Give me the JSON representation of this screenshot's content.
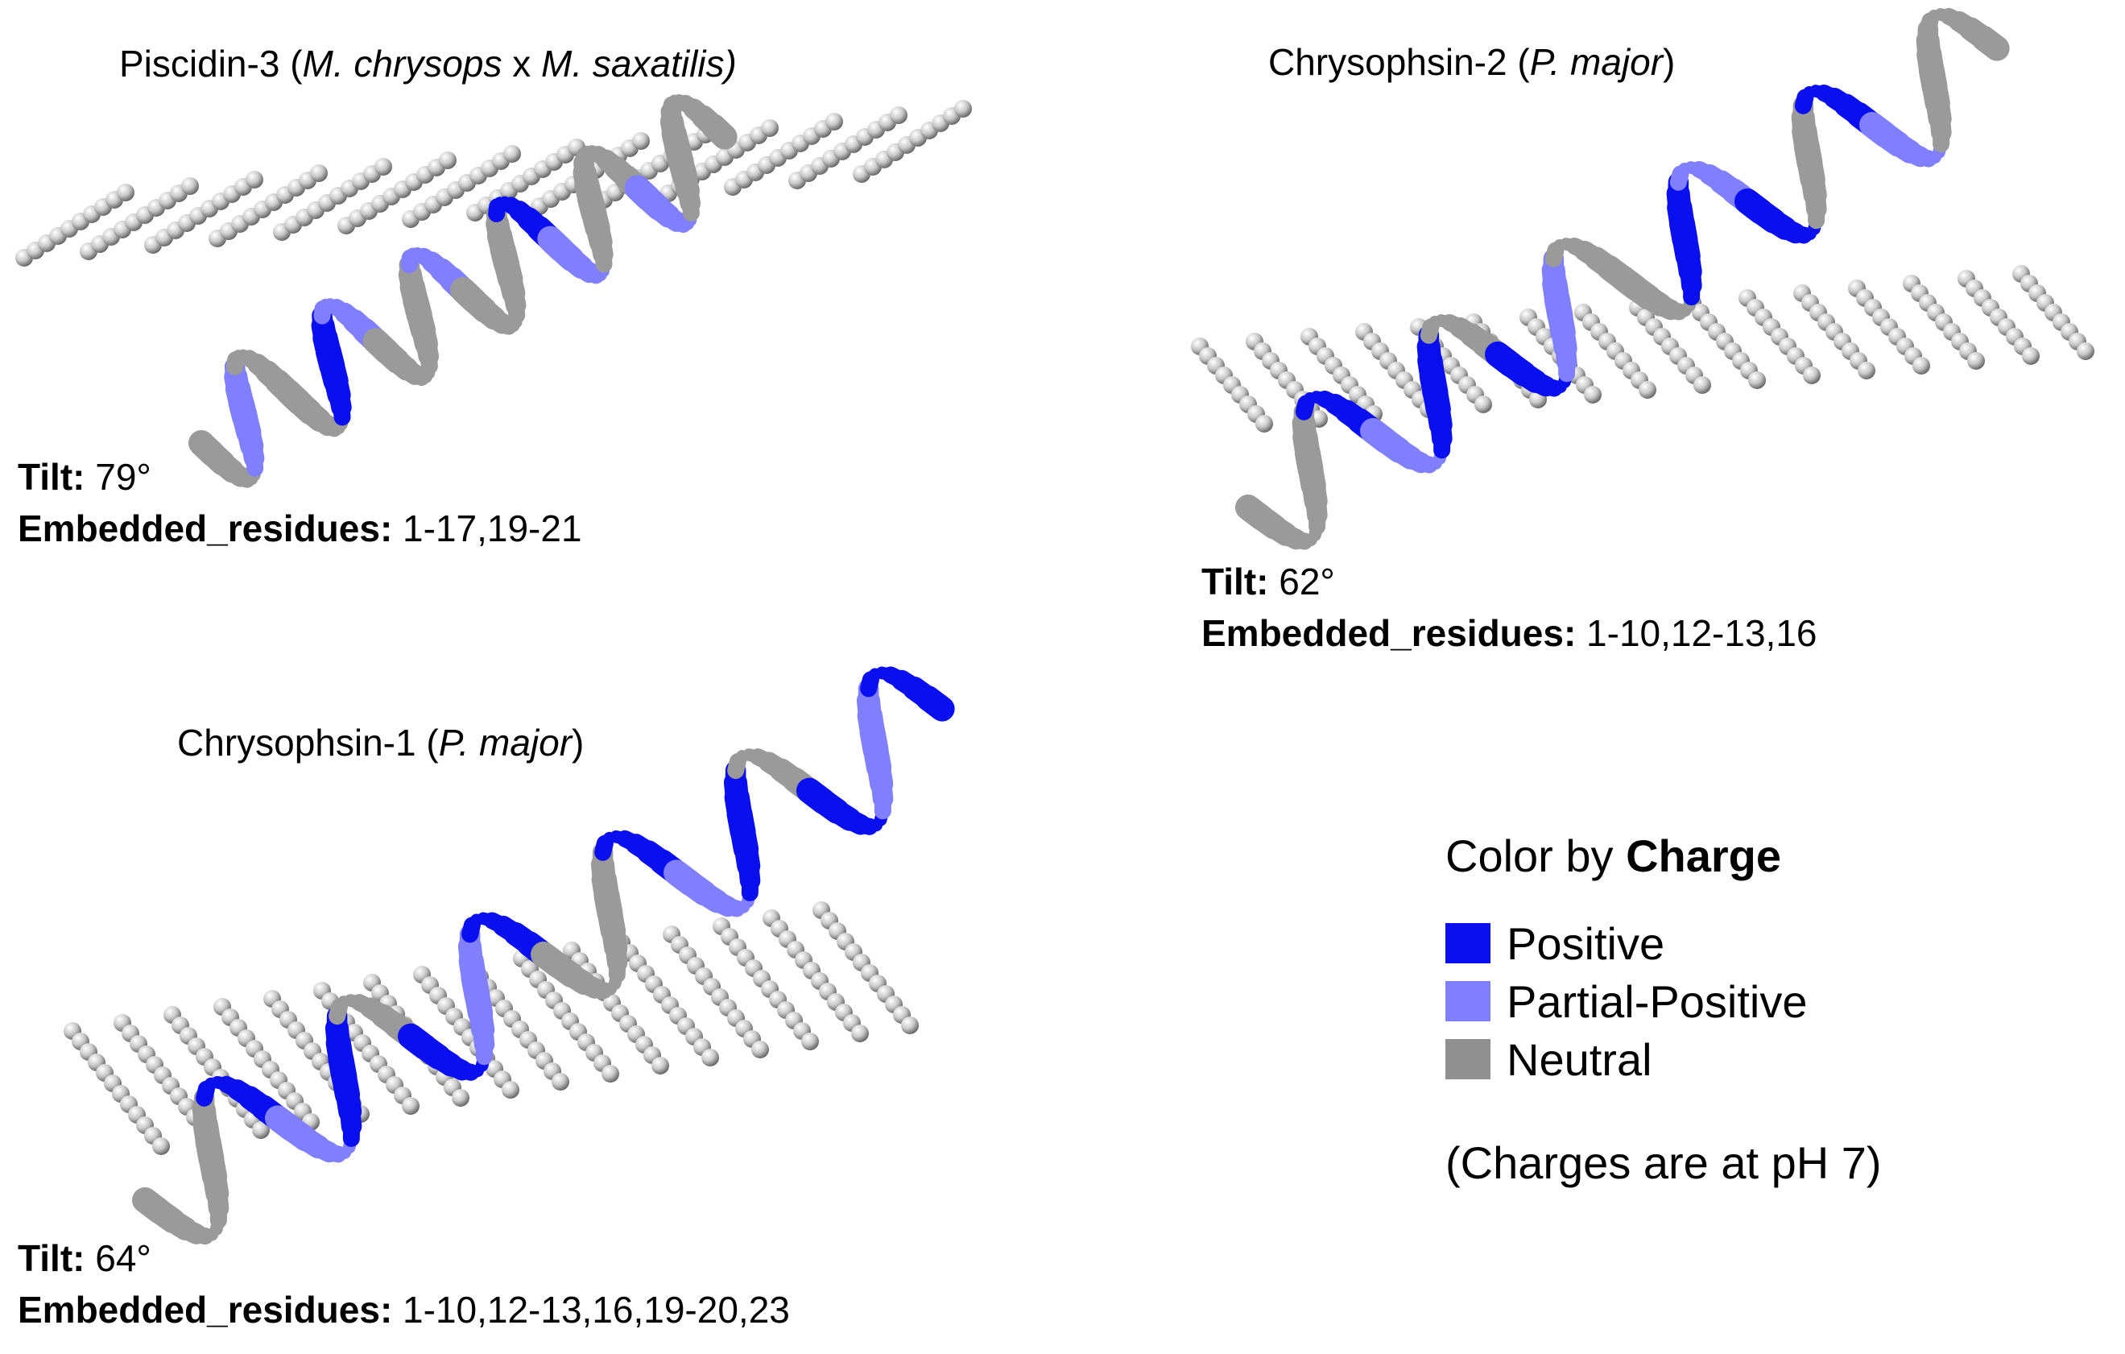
{
  "panels": [
    {
      "name_prefix": "Piscidin-3",
      "organism_paren_open": "(",
      "organism_a": "M. chrysops",
      "organism_x": " x ",
      "organism_b": "M. saxatilis)",
      "organism_paren_close": "",
      "tilt_label": "Tilt:",
      "tilt_value": " 79°",
      "embedded_label": "Embedded_residues:",
      "embedded_value": " 1-17,19-21"
    },
    {
      "name_prefix": "Chrysophsin-2",
      "organism_paren_open": "(",
      "organism": "P. major",
      "organism_paren_close": ")",
      "tilt_label": "Tilt:",
      "tilt_value": " 62°",
      "embedded_label": "Embedded_residues:",
      "embedded_value": " 1-10,12-13,16"
    },
    {
      "name_prefix": "Chrysophsin-1",
      "organism_paren_open": "(",
      "organism": "P. major",
      "organism_paren_close": ")",
      "tilt_label": "Tilt:",
      "tilt_value": " 64°",
      "embedded_label": "Embedded_residues:",
      "embedded_value": " 1-10,12-13,16,19-20,23"
    }
  ],
  "legend": {
    "title_prefix": "Color by ",
    "title_bold": "Charge",
    "items": [
      {
        "label": "Positive",
        "color": "#0a0ff0"
      },
      {
        "label": "Partial-Positive",
        "color": "#8080ff"
      },
      {
        "label": "Neutral",
        "color": "#909090"
      }
    ],
    "note": "(Charges are at pH 7)"
  }
}
